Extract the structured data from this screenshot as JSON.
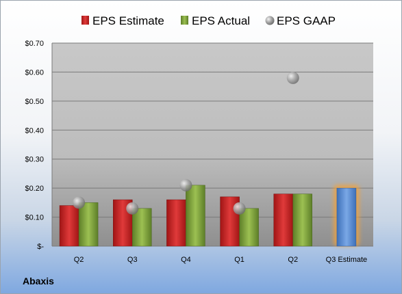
{
  "company_label": "Abaxis",
  "chart_data": {
    "type": "bar",
    "categories": [
      "Q2",
      "Q3",
      "Q4",
      "Q1",
      "Q2",
      "Q3 Estimate"
    ],
    "series": [
      {
        "name": "EPS Estimate",
        "values": [
          0.14,
          0.16,
          0.16,
          0.17,
          0.18,
          null
        ],
        "color": "#cc2222"
      },
      {
        "name": "EPS Actual",
        "values": [
          0.15,
          0.13,
          0.21,
          0.13,
          0.18,
          null
        ],
        "color": "#7ea33a"
      },
      {
        "name": "EPS GAAP",
        "type": "scatter",
        "values": [
          0.15,
          0.13,
          0.21,
          0.13,
          0.58,
          null
        ],
        "color": "#9a9a9a"
      }
    ],
    "highlight": {
      "category": "Q3 Estimate",
      "value": 0.2,
      "color": "#5b8fd6",
      "glow": "#f2a23a"
    },
    "ylim": [
      0,
      0.7
    ],
    "yticks": [
      0,
      0.1,
      0.2,
      0.3,
      0.4,
      0.5,
      0.6,
      0.7
    ],
    "ytick_labels": [
      "$-",
      "$0.10",
      "$0.20",
      "$0.30",
      "$0.40",
      "$0.50",
      "$0.60",
      "$0.70"
    ],
    "legend_position": "top",
    "grid": true,
    "title": "",
    "xlabel": "",
    "ylabel": ""
  }
}
